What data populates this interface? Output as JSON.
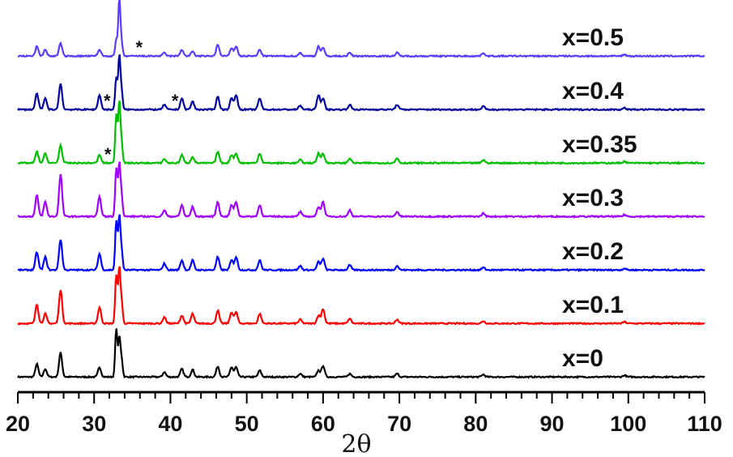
{
  "chart_data": {
    "type": "line",
    "title": "",
    "xlabel": "2θ",
    "ylabel": "",
    "xlim": [
      20,
      110
    ],
    "xticks": [
      20,
      30,
      40,
      50,
      60,
      70,
      80,
      90,
      100,
      110
    ],
    "grid": false,
    "legend": "inline labels at right end of each trace",
    "peaks_2theta": [
      22.5,
      23.6,
      25.6,
      30.7,
      32.9,
      33.3,
      33.6,
      39.2,
      41.5,
      42.9,
      46.2,
      48.0,
      48.6,
      51.7,
      57.0,
      59.4,
      60.0,
      63.5,
      69.7,
      81.0,
      99.5
    ],
    "series": [
      {
        "name": "x=0",
        "color": "#000000",
        "offset": 0,
        "peak_heights": [
          16,
          10,
          30,
          12,
          60,
          48,
          22,
          6,
          10,
          9,
          13,
          12,
          12,
          8,
          4,
          8,
          14,
          4,
          4,
          3,
          2
        ]
      },
      {
        "name": "x=0.1",
        "color": "#ff0000",
        "offset": 1,
        "peak_heights": [
          24,
          12,
          42,
          20,
          60,
          68,
          26,
          8,
          10,
          12,
          16,
          14,
          14,
          12,
          5,
          10,
          18,
          6,
          5,
          3,
          2
        ]
      },
      {
        "name": "x=0.2",
        "color": "#0000ff",
        "offset": 2,
        "peak_heights": [
          22,
          16,
          38,
          20,
          60,
          66,
          24,
          8,
          12,
          12,
          16,
          12,
          16,
          12,
          5,
          10,
          14,
          6,
          5,
          3,
          2
        ]
      },
      {
        "name": "x=0.3",
        "color": "#a000ff",
        "offset": 3,
        "peak_heights": [
          26,
          18,
          52,
          24,
          60,
          66,
          26,
          8,
          14,
          12,
          18,
          14,
          18,
          14,
          6,
          12,
          18,
          8,
          6,
          4,
          2
        ]
      },
      {
        "name": "x=0.35",
        "color": "#00c000",
        "offset": 4,
        "peak_heights": [
          14,
          12,
          22,
          10,
          60,
          76,
          24,
          5,
          10,
          8,
          14,
          10,
          12,
          12,
          4,
          12,
          12,
          6,
          6,
          4,
          2
        ]
      },
      {
        "name": "x=0.4",
        "color": "#0000a0",
        "offset": 5,
        "peak_heights": [
          20,
          14,
          32,
          18,
          40,
          66,
          22,
          6,
          14,
          10,
          16,
          14,
          18,
          14,
          5,
          18,
          14,
          6,
          6,
          4,
          2
        ]
      },
      {
        "name": "x=0.5",
        "color": "#5a3cff",
        "offset": 6,
        "peak_heights": [
          12,
          8,
          16,
          8,
          20,
          70,
          16,
          4,
          8,
          6,
          14,
          10,
          12,
          8,
          4,
          12,
          10,
          4,
          4,
          4,
          2
        ]
      }
    ],
    "annotations": [
      {
        "text": "*",
        "series": "x=0.35",
        "x": 31.8
      },
      {
        "text": "*",
        "series": "x=0.4",
        "x": 31.7
      },
      {
        "text": "*",
        "series": "x=0.4",
        "x": 40.6
      },
      {
        "text": "*",
        "series": "x=0.5",
        "x": 35.9
      }
    ]
  }
}
